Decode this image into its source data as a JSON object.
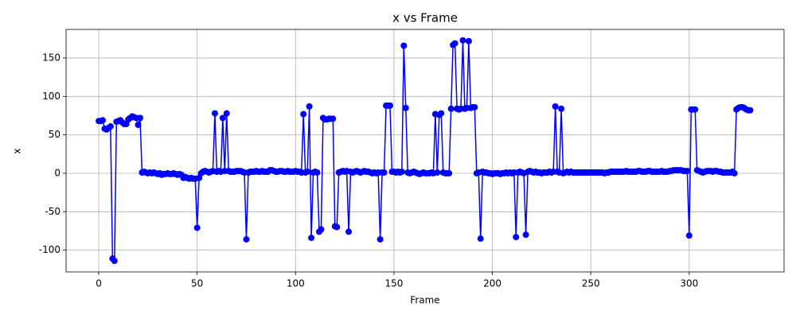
{
  "chart_data": {
    "type": "line",
    "title": "x vs Frame",
    "xlabel": "Frame",
    "ylabel": "x",
    "color": "blue",
    "grid": true,
    "marker": "o",
    "xlim": [
      -16.6,
      348.2
    ],
    "ylim": [
      -128.3,
      187.2
    ],
    "xticks": [
      0,
      50,
      100,
      150,
      200,
      250,
      300
    ],
    "yticks": [
      -100,
      -50,
      0,
      50,
      100,
      150
    ],
    "x": [
      0,
      1,
      2,
      3,
      4,
      5,
      6,
      7,
      8,
      9,
      10,
      11,
      12,
      13,
      14,
      15,
      16,
      17,
      18,
      19,
      20,
      21,
      22,
      23,
      24,
      25,
      26,
      27,
      28,
      29,
      30,
      31,
      32,
      33,
      34,
      35,
      36,
      37,
      38,
      39,
      40,
      41,
      42,
      43,
      44,
      45,
      46,
      47,
      48,
      49,
      50,
      51,
      52,
      53,
      54,
      55,
      56,
      57,
      58,
      59,
      60,
      61,
      62,
      63,
      64,
      65,
      66,
      67,
      68,
      69,
      70,
      71,
      72,
      73,
      74,
      75,
      76,
      77,
      78,
      79,
      80,
      81,
      82,
      83,
      84,
      85,
      86,
      87,
      88,
      89,
      90,
      91,
      92,
      93,
      94,
      95,
      96,
      97,
      98,
      99,
      100,
      101,
      102,
      103,
      104,
      105,
      106,
      107,
      108,
      109,
      110,
      111,
      112,
      113,
      114,
      115,
      116,
      117,
      118,
      119,
      120,
      121,
      122,
      123,
      124,
      125,
      126,
      127,
      128,
      129,
      130,
      131,
      132,
      133,
      134,
      135,
      136,
      137,
      138,
      139,
      140,
      141,
      142,
      143,
      144,
      145,
      146,
      147,
      148,
      149,
      150,
      151,
      152,
      153,
      154,
      155,
      156,
      157,
      158,
      159,
      160,
      161,
      162,
      163,
      164,
      165,
      166,
      167,
      168,
      169,
      170,
      171,
      172,
      173,
      174,
      175,
      176,
      177,
      178,
      179,
      180,
      181,
      182,
      183,
      184,
      185,
      186,
      187,
      188,
      189,
      190,
      191,
      192,
      193,
      194,
      195,
      196,
      197,
      198,
      199,
      200,
      201,
      202,
      203,
      204,
      205,
      206,
      207,
      208,
      209,
      210,
      211,
      212,
      213,
      214,
      215,
      216,
      217,
      218,
      219,
      220,
      221,
      222,
      223,
      224,
      225,
      226,
      227,
      228,
      229,
      230,
      231,
      232,
      233,
      234,
      235,
      236,
      237,
      238,
      239,
      240,
      241,
      242,
      243,
      244,
      245,
      246,
      247,
      248,
      249,
      250,
      251,
      252,
      253,
      254,
      255,
      256,
      257,
      258,
      259,
      260,
      261,
      262,
      263,
      264,
      265,
      266,
      267,
      268,
      269,
      270,
      271,
      272,
      273,
      274,
      275,
      276,
      277,
      278,
      279,
      280,
      281,
      282,
      283,
      284,
      285,
      286,
      287,
      288,
      289,
      290,
      291,
      292,
      293,
      294,
      295,
      296,
      297,
      298,
      299,
      300,
      301,
      302,
      303,
      304,
      305,
      306,
      307,
      308,
      309,
      310,
      311,
      312,
      313,
      314,
      315,
      316,
      317,
      318,
      319,
      320,
      321,
      322,
      323,
      324,
      325,
      326,
      327,
      328,
      329,
      330,
      331
    ],
    "values": [
      68,
      68,
      69,
      58,
      57,
      59,
      61,
      -111,
      -114,
      67,
      68,
      69,
      66,
      64,
      64,
      70,
      72,
      74,
      73,
      72,
      63,
      72,
      1,
      2,
      1,
      0,
      1,
      0,
      1,
      0,
      -1,
      0,
      -2,
      -1,
      -1,
      0,
      -1,
      -1,
      0,
      -1,
      -2,
      -1,
      -2,
      -6,
      -5,
      -6,
      -7,
      -6,
      -7,
      -7,
      -71,
      -6,
      0,
      2,
      3,
      2,
      1,
      2,
      3,
      78,
      2,
      3,
      2,
      72,
      3,
      78,
      3,
      2,
      2,
      2,
      3,
      3,
      3,
      2,
      1,
      -86,
      1,
      2,
      2,
      2,
      3,
      2,
      2,
      3,
      2,
      2,
      2,
      4,
      4,
      3,
      2,
      2,
      3,
      3,
      2,
      2,
      3,
      2,
      2,
      2,
      3,
      2,
      2,
      1,
      77,
      1,
      2,
      87,
      -84,
      1,
      2,
      1,
      -76,
      -73,
      72,
      70,
      70,
      71,
      71,
      71,
      -69,
      -70,
      1,
      2,
      3,
      2,
      3,
      -76,
      2,
      1,
      2,
      3,
      2,
      1,
      2,
      3,
      2,
      2,
      1,
      0,
      1,
      0,
      1,
      -86,
      1,
      1,
      88,
      88,
      88,
      2,
      2,
      1,
      2,
      1,
      2,
      166,
      85,
      1,
      0,
      1,
      2,
      1,
      0,
      -1,
      0,
      1,
      0,
      0,
      0,
      1,
      0,
      77,
      1,
      76,
      78,
      1,
      0,
      0,
      0,
      84,
      167,
      169,
      84,
      83,
      84,
      173,
      84,
      85,
      172,
      85,
      86,
      86,
      0,
      1,
      -85,
      2,
      1,
      1,
      0,
      0,
      -1,
      0,
      0,
      0,
      -1,
      0,
      0,
      1,
      0,
      1,
      0,
      1,
      -83,
      1,
      2,
      1,
      0,
      -80,
      2,
      3,
      2,
      1,
      2,
      1,
      1,
      0,
      1,
      1,
      1,
      2,
      1,
      2,
      87,
      2,
      1,
      84,
      0,
      1,
      2,
      1,
      2,
      1,
      1,
      1,
      1,
      1,
      1,
      1,
      1,
      1,
      1,
      1,
      1,
      1,
      1,
      1,
      1,
      0,
      1,
      1,
      2,
      2,
      2,
      2,
      2,
      2,
      2,
      2,
      3,
      2,
      2,
      2,
      2,
      2,
      3,
      3,
      2,
      2,
      2,
      3,
      3,
      2,
      2,
      2,
      2,
      2,
      3,
      2,
      2,
      2,
      3,
      3,
      4,
      4,
      4,
      4,
      4,
      3,
      3,
      3,
      -81,
      83,
      83,
      83,
      4,
      3,
      2,
      1,
      2,
      3,
      3,
      3,
      2,
      3,
      3,
      2,
      2,
      1,
      1,
      1,
      1,
      1,
      2,
      0,
      83,
      85,
      86,
      86,
      85,
      83,
      82,
      82
    ]
  }
}
